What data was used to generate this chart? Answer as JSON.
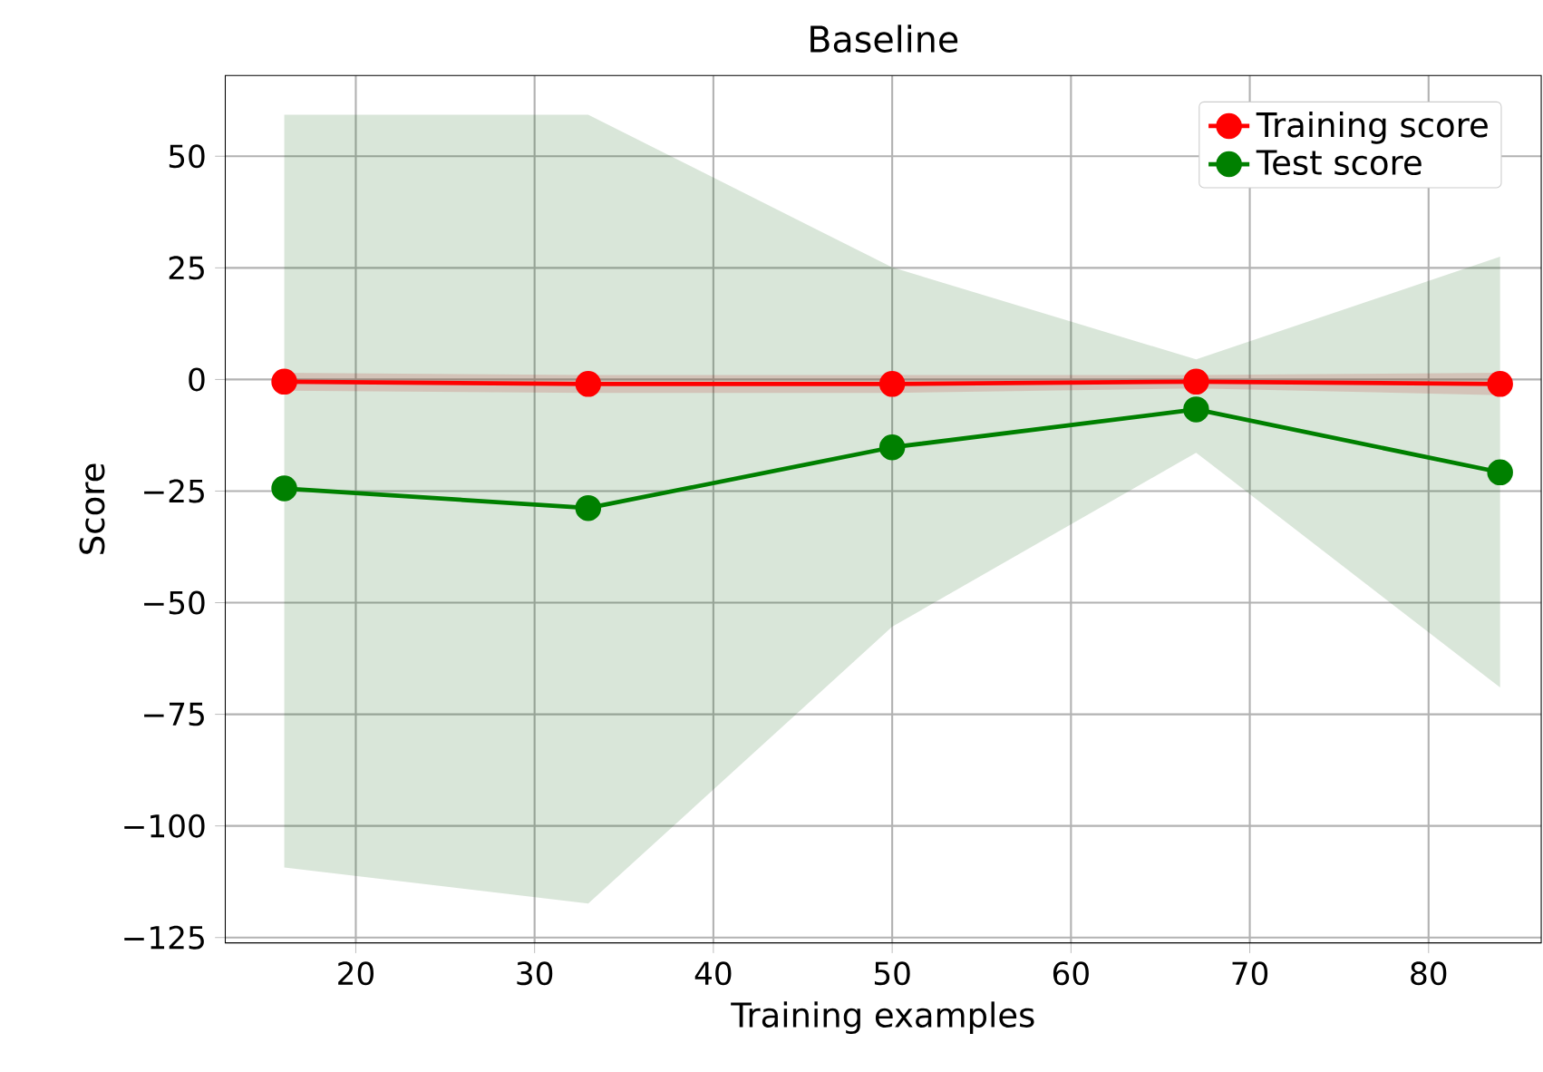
{
  "chart_data": {
    "type": "line",
    "title": "Baseline",
    "xlabel": "Training examples",
    "ylabel": "Score",
    "x": [
      16,
      33,
      50,
      67,
      84
    ],
    "series": [
      {
        "name": "Training score",
        "color": "#ff0000",
        "values": [
          -0.5,
          -1,
          -1,
          -0.5,
          -1
        ],
        "lower": [
          -2.5,
          -3,
          -3,
          -2,
          -3.5
        ],
        "upper": [
          1.5,
          1,
          1,
          1,
          1.5
        ]
      },
      {
        "name": "Test score",
        "color": "#008000",
        "values": [
          -24.4,
          -28.8,
          -15.2,
          -6.7,
          -20.8
        ],
        "lower": [
          -109.3,
          -117.4,
          -55.4,
          -16.4,
          -69
        ],
        "upper": [
          59.3,
          59.3,
          25.1,
          4.5,
          27.5
        ]
      }
    ],
    "xlim": [
      12.7,
      86.3
    ],
    "ylim": [
      -126.2,
      68.1
    ],
    "xticks": [
      20,
      30,
      40,
      50,
      60,
      70,
      80
    ],
    "yticks": [
      {
        "value": -125,
        "label": "−125"
      },
      {
        "value": -100,
        "label": "−100"
      },
      {
        "value": -75,
        "label": "−75"
      },
      {
        "value": -50,
        "label": "−50"
      },
      {
        "value": -25,
        "label": "−25"
      },
      0,
      25,
      50
    ],
    "grid": true,
    "legend": "top right",
    "marker": "circle",
    "line_style": "solid"
  }
}
